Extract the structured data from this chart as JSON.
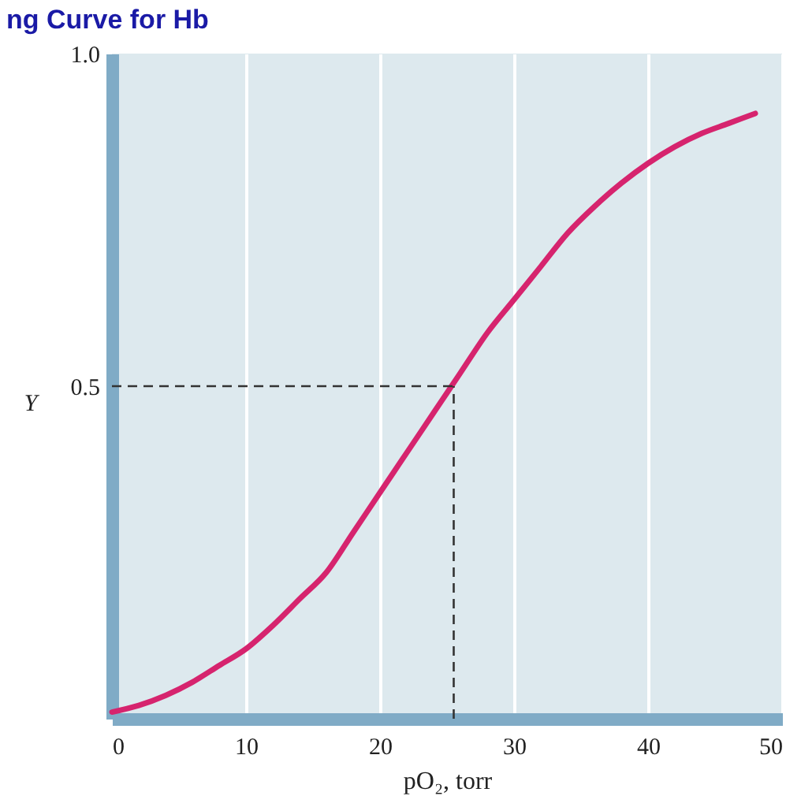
{
  "chart_data": {
    "type": "line",
    "title": "ng Curve for Hb",
    "xlabel": "pO₂, torr",
    "ylabel": "Y",
    "x": [
      0,
      2,
      4,
      6,
      8,
      10,
      12,
      14,
      16,
      18,
      20,
      22,
      24,
      26,
      28,
      30,
      32,
      34,
      36,
      38,
      40,
      42,
      44,
      46,
      48
    ],
    "series": [
      {
        "color": "#d6246e",
        "values": [
          0.01,
          0.02,
          0.035,
          0.055,
          0.08,
          0.105,
          0.14,
          0.18,
          0.22,
          0.28,
          0.34,
          0.4,
          0.46,
          0.52,
          0.58,
          0.63,
          0.68,
          0.73,
          0.77,
          0.805,
          0.835,
          0.86,
          0.88,
          0.895,
          0.91
        ]
      }
    ],
    "xlim": [
      0,
      50
    ],
    "xticks": [
      0,
      10,
      20,
      30,
      40,
      50
    ],
    "ylim": [
      0,
      1
    ],
    "yticks": [
      {
        "value": 0.5,
        "label": "0.5"
      },
      {
        "value": 1,
        "label": "1.0"
      }
    ],
    "grid": "x",
    "line_style": "solid",
    "marker": "none",
    "ref_lines": [
      {
        "axis": "y",
        "value": 0.5,
        "color": "#333333",
        "line_style": "dashed"
      },
      {
        "axis": "x",
        "value": 25.5,
        "color": "#333333",
        "line_style": "dashed"
      }
    ]
  }
}
